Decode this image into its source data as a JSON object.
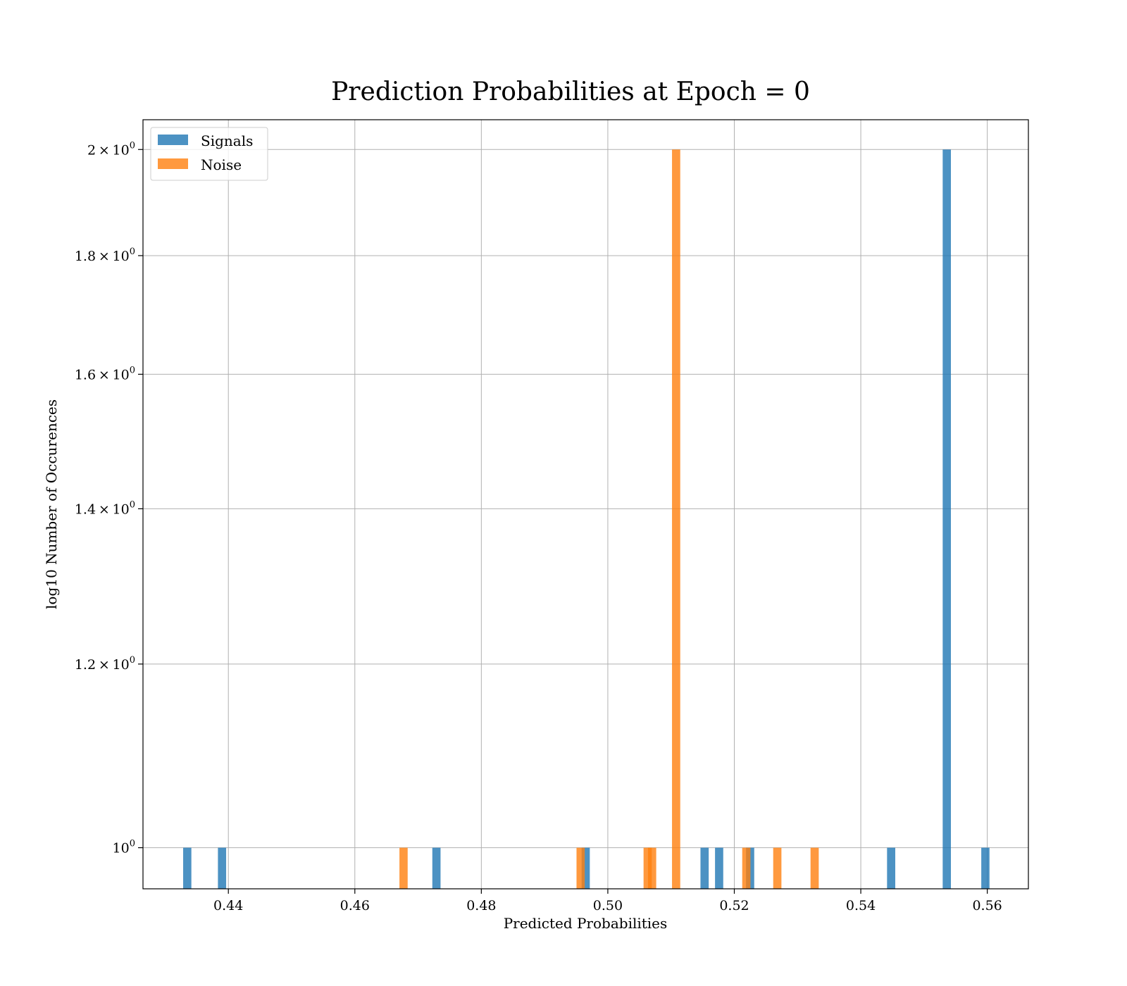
{
  "chart_data": {
    "type": "bar",
    "title": "Prediction Probabilities at Epoch = 0",
    "xlabel": "Predicted Probabilities",
    "ylabel": "log10 Number of Occurences",
    "xlim": [
      0.4265,
      0.5665
    ],
    "ylim": [
      0.96,
      2.06
    ],
    "yscale": "log",
    "grid": true,
    "legend_position": "top-left",
    "bin_width": 0.0013,
    "x_ticks": [
      {
        "value": 0.44,
        "label": "0.44"
      },
      {
        "value": 0.46,
        "label": "0.46"
      },
      {
        "value": 0.48,
        "label": "0.48"
      },
      {
        "value": 0.5,
        "label": "0.50"
      },
      {
        "value": 0.52,
        "label": "0.52"
      },
      {
        "value": 0.54,
        "label": "0.54"
      },
      {
        "value": 0.56,
        "label": "0.56"
      }
    ],
    "y_ticks": [
      {
        "value": 1.0,
        "mantissa": "",
        "exp": "0",
        "base": "10"
      },
      {
        "value": 1.2,
        "mantissa": "1.2",
        "exp": "0",
        "base": "10"
      },
      {
        "value": 1.4,
        "mantissa": "1.4",
        "exp": "0",
        "base": "10"
      },
      {
        "value": 1.6,
        "mantissa": "1.6",
        "exp": "0",
        "base": "10"
      },
      {
        "value": 1.8,
        "mantissa": "1.8",
        "exp": "0",
        "base": "10"
      },
      {
        "value": 2.0,
        "mantissa": "2",
        "exp": "0",
        "base": "10"
      }
    ],
    "series": [
      {
        "name": "Signals",
        "color": "#1f77b4",
        "bars": [
          {
            "x": 0.4335,
            "count": 1
          },
          {
            "x": 0.439,
            "count": 1
          },
          {
            "x": 0.4729,
            "count": 1
          },
          {
            "x": 0.4965,
            "count": 1
          },
          {
            "x": 0.5153,
            "count": 1
          },
          {
            "x": 0.5176,
            "count": 1
          },
          {
            "x": 0.5225,
            "count": 1
          },
          {
            "x": 0.5448,
            "count": 1
          },
          {
            "x": 0.5536,
            "count": 2
          },
          {
            "x": 0.5597,
            "count": 1
          }
        ]
      },
      {
        "name": "Noise",
        "color": "#ff7f0e",
        "bars": [
          {
            "x": 0.4677,
            "count": 1
          },
          {
            "x": 0.4957,
            "count": 1
          },
          {
            "x": 0.5063,
            "count": 1
          },
          {
            "x": 0.507,
            "count": 1
          },
          {
            "x": 0.5108,
            "count": 2
          },
          {
            "x": 0.5219,
            "count": 1
          },
          {
            "x": 0.5268,
            "count": 1
          },
          {
            "x": 0.5327,
            "count": 1
          }
        ]
      }
    ]
  }
}
